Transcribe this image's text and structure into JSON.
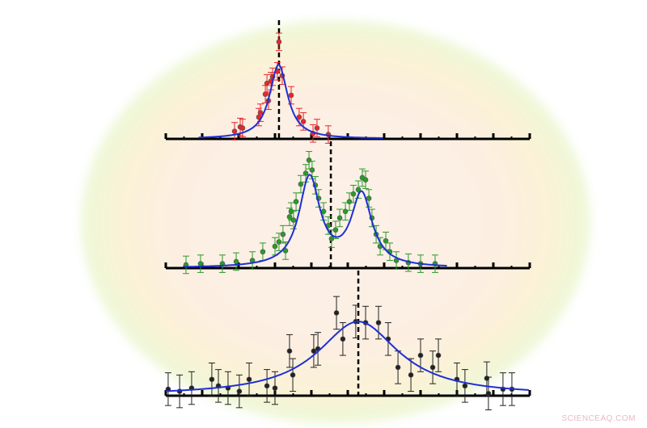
{
  "watermark": "SCIENCEAQ.COM",
  "chart_data": [
    {
      "type": "scatter",
      "panel": "top",
      "xlim": [
        0,
        20
      ],
      "ylim": [
        0,
        1
      ],
      "grid": false,
      "marker_color": "#e8262a",
      "fit_color": "#1f2fd6",
      "fit": {
        "model": "lorentzian",
        "peaks": [
          {
            "center": 6.2,
            "hwhm": 0.6,
            "amplitude": 0.68
          }
        ]
      },
      "dashed_line_x": 6.22,
      "points": [
        [
          3.78,
          0.07
        ],
        [
          4.09,
          0.11
        ],
        [
          4.22,
          0.1
        ],
        [
          5.11,
          0.2
        ],
        [
          5.2,
          0.24
        ],
        [
          5.47,
          0.41
        ],
        [
          5.56,
          0.51
        ],
        [
          5.64,
          0.35
        ],
        [
          5.78,
          0.53
        ],
        [
          5.87,
          0.57
        ],
        [
          6.13,
          0.62
        ],
        [
          6.22,
          0.89
        ],
        [
          6.4,
          0.58
        ],
        [
          6.89,
          0.4
        ],
        [
          7.33,
          0.2
        ],
        [
          7.56,
          0.16
        ],
        [
          8.09,
          0.05
        ],
        [
          8.31,
          0.1
        ],
        [
          8.93,
          0.04
        ]
      ],
      "error": 0.08
    },
    {
      "type": "scatter",
      "panel": "middle",
      "xlim": [
        0,
        20
      ],
      "ylim": [
        0,
        1
      ],
      "grid": false,
      "marker_color": "#2a9a2a",
      "fit_color": "#1f2fd6",
      "fit": {
        "model": "lorentzian",
        "peaks": [
          {
            "center": 7.9,
            "hwhm": 0.7,
            "amplitude": 0.82
          },
          {
            "center": 10.76,
            "hwhm": 0.7,
            "amplitude": 0.66
          }
        ]
      },
      "dashed_line_x": 9.07,
      "points": [
        [
          1.11,
          0.03
        ],
        [
          1.91,
          0.04
        ],
        [
          3.11,
          0.04
        ],
        [
          3.87,
          0.06
        ],
        [
          4.76,
          0.07
        ],
        [
          5.33,
          0.15
        ],
        [
          6.0,
          0.2
        ],
        [
          6.22,
          0.24
        ],
        [
          6.44,
          0.31
        ],
        [
          6.58,
          0.16
        ],
        [
          6.8,
          0.47
        ],
        [
          6.89,
          0.52
        ],
        [
          7.02,
          0.44
        ],
        [
          7.16,
          0.61
        ],
        [
          7.42,
          0.77
        ],
        [
          7.69,
          0.87
        ],
        [
          7.87,
          0.99
        ],
        [
          8.04,
          0.9
        ],
        [
          8.22,
          0.76
        ],
        [
          8.4,
          0.64
        ],
        [
          8.67,
          0.52
        ],
        [
          8.93,
          0.39
        ],
        [
          9.11,
          0.27
        ],
        [
          9.33,
          0.35
        ],
        [
          9.56,
          0.46
        ],
        [
          9.87,
          0.52
        ],
        [
          10.09,
          0.61
        ],
        [
          10.31,
          0.68
        ],
        [
          10.58,
          0.72
        ],
        [
          10.8,
          0.83
        ],
        [
          10.98,
          0.81
        ],
        [
          11.16,
          0.64
        ],
        [
          11.33,
          0.46
        ],
        [
          11.56,
          0.31
        ],
        [
          11.78,
          0.2
        ],
        [
          12.09,
          0.25
        ],
        [
          12.31,
          0.15
        ],
        [
          12.67,
          0.07
        ],
        [
          13.33,
          0.05
        ],
        [
          14.0,
          0.04
        ],
        [
          14.8,
          0.04
        ]
      ],
      "error": 0.08
    },
    {
      "type": "scatter",
      "panel": "bottom",
      "xlim": [
        0,
        20
      ],
      "ylim": [
        0,
        1
      ],
      "grid": false,
      "marker_color": "#222222",
      "fit_color": "#1f2fd6",
      "fit": {
        "model": "lorentzian",
        "peaks": [
          {
            "center": 10.58,
            "hwhm": 2.7,
            "amplitude": 0.68
          }
        ]
      },
      "dashed_line_x": 10.58,
      "points": [
        [
          0.13,
          0.06
        ],
        [
          0.76,
          0.04
        ],
        [
          1.42,
          0.07
        ],
        [
          2.53,
          0.15
        ],
        [
          2.89,
          0.09
        ],
        [
          3.42,
          0.07
        ],
        [
          4.04,
          0.04
        ],
        [
          4.58,
          0.15
        ],
        [
          5.56,
          0.09
        ],
        [
          6.0,
          0.07
        ],
        [
          6.8,
          0.41
        ],
        [
          6.98,
          0.19
        ],
        [
          8.13,
          0.41
        ],
        [
          8.36,
          0.43
        ],
        [
          9.38,
          0.76
        ],
        [
          9.73,
          0.52
        ],
        [
          10.44,
          0.68
        ],
        [
          10.98,
          0.67
        ],
        [
          11.69,
          0.67
        ],
        [
          12.22,
          0.52
        ],
        [
          12.76,
          0.26
        ],
        [
          13.47,
          0.19
        ],
        [
          14.0,
          0.37
        ],
        [
          14.67,
          0.26
        ],
        [
          14.98,
          0.37
        ],
        [
          16.0,
          0.15
        ],
        [
          16.44,
          0.09
        ],
        [
          17.64,
          0.16
        ],
        [
          17.73,
          0.02
        ],
        [
          18.53,
          0.06
        ],
        [
          19.02,
          0.06
        ]
      ],
      "error": 0.15
    }
  ]
}
